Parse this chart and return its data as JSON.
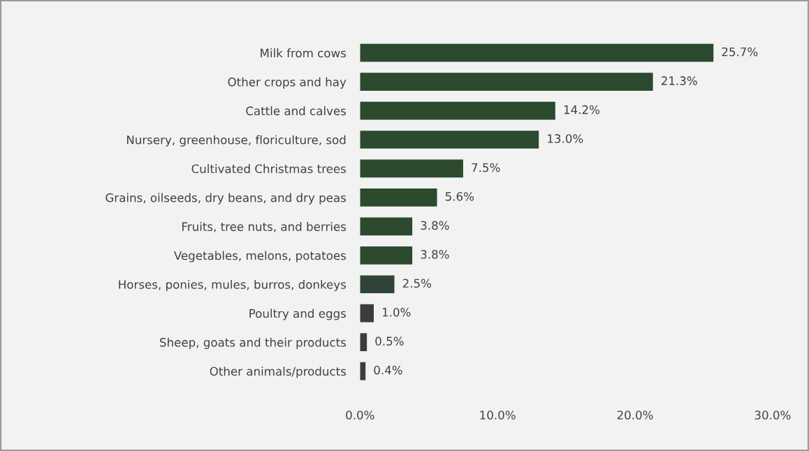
{
  "chart_data": {
    "type": "bar",
    "orientation": "horizontal",
    "categories": [
      "Milk from cows",
      "Other crops and hay",
      "Cattle and calves",
      "Nursery, greenhouse, floriculture, sod",
      "Cultivated Christmas trees",
      "Grains, oilseeds, dry beans, and dry peas",
      "Fruits, tree nuts, and berries",
      "Vegetables, melons, potatoes",
      "Horses, ponies, mules, burros, donkeys",
      "Poultry and eggs",
      "Sheep, goats and their products",
      "Other animals/products"
    ],
    "values": [
      25.7,
      21.3,
      14.2,
      13.0,
      7.5,
      5.6,
      3.8,
      3.8,
      2.5,
      1.0,
      0.5,
      0.4
    ],
    "value_labels": [
      "25.7%",
      "21.3%",
      "14.2%",
      "13.0%",
      "7.5%",
      "5.6%",
      "3.8%",
      "3.8%",
      "2.5%",
      "1.0%",
      "0.5%",
      "0.4%"
    ],
    "colors": [
      "#2b4a2e",
      "#2b4a2e",
      "#2b4a2e",
      "#2b4a2e",
      "#2b4a2e",
      "#2b4a2e",
      "#2b4a2e",
      "#2b4a2e",
      "#2f4437",
      "#3a3d3b",
      "#3a3d3b",
      "#3a3d3b"
    ],
    "xlim": [
      0,
      30
    ],
    "xticks": [
      {
        "value": 0,
        "label": "0.0%"
      },
      {
        "value": 10,
        "label": "10.0%"
      },
      {
        "value": 20,
        "label": "20.0%"
      },
      {
        "value": 30,
        "label": "30.0%"
      }
    ],
    "grid": false,
    "legend": false
  }
}
